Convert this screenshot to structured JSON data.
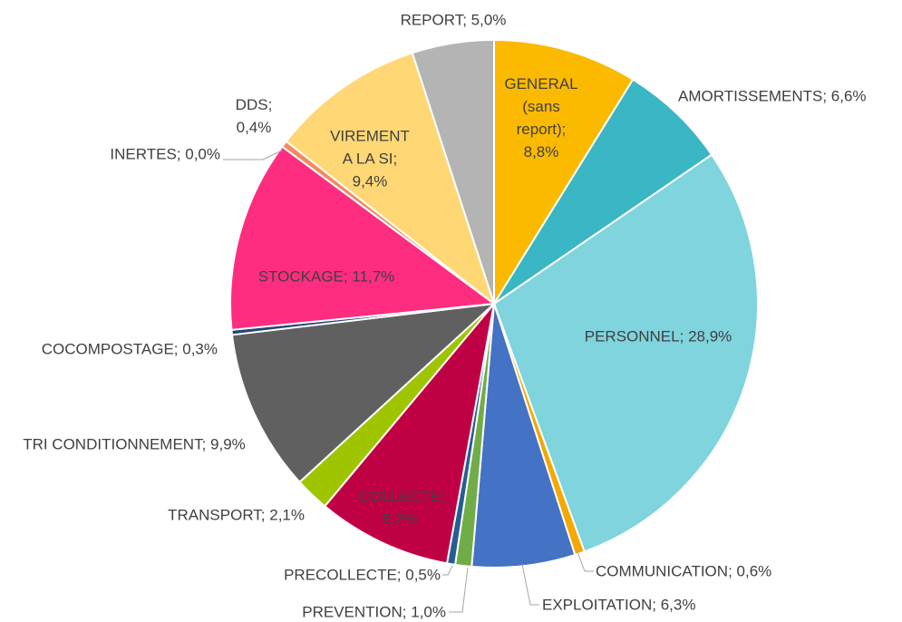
{
  "chart_data": {
    "type": "pie",
    "categories": [
      "GENERAL (sans report)",
      "AMORTISSEMENTS",
      "PERSONNEL",
      "COMMUNICATION",
      "EXPLOITATION",
      "PREVENTION",
      "PRECOLLECTE",
      "COLLECTE",
      "TRANSPORT",
      "TRI CONDITIONNEMENT",
      "COCOMPOSTAGE",
      "STOCKAGE",
      "INERTES",
      "DDS",
      "VIREMENT A LA SI",
      "REPORT"
    ],
    "values": [
      8.8,
      6.6,
      28.9,
      0.6,
      6.3,
      1.0,
      0.5,
      8.2,
      2.1,
      9.9,
      0.3,
      11.7,
      0.0,
      0.4,
      9.4,
      5.0
    ],
    "value_labels": [
      "8,8%",
      "6,6%",
      "28,9%",
      "0,6%",
      "6,3%",
      "1,0%",
      "0,5%",
      "8,2%",
      "2,1%",
      "9,9%",
      "0,3%",
      "11,7%",
      "0,0%",
      "0,4%",
      "9,4%",
      "5,0%"
    ],
    "label_separator": "; ",
    "colors": [
      "#fbba00",
      "#3ab6c4",
      "#7fd4de",
      "#f5a800",
      "#4472c4",
      "#70ad47",
      "#255e91",
      "#c00045",
      "#9fc500",
      "#606060",
      "#264478",
      "#ff2d7f",
      "#a5a5a5",
      "#f4895f",
      "#ffd875",
      "#b4b4b4"
    ]
  }
}
